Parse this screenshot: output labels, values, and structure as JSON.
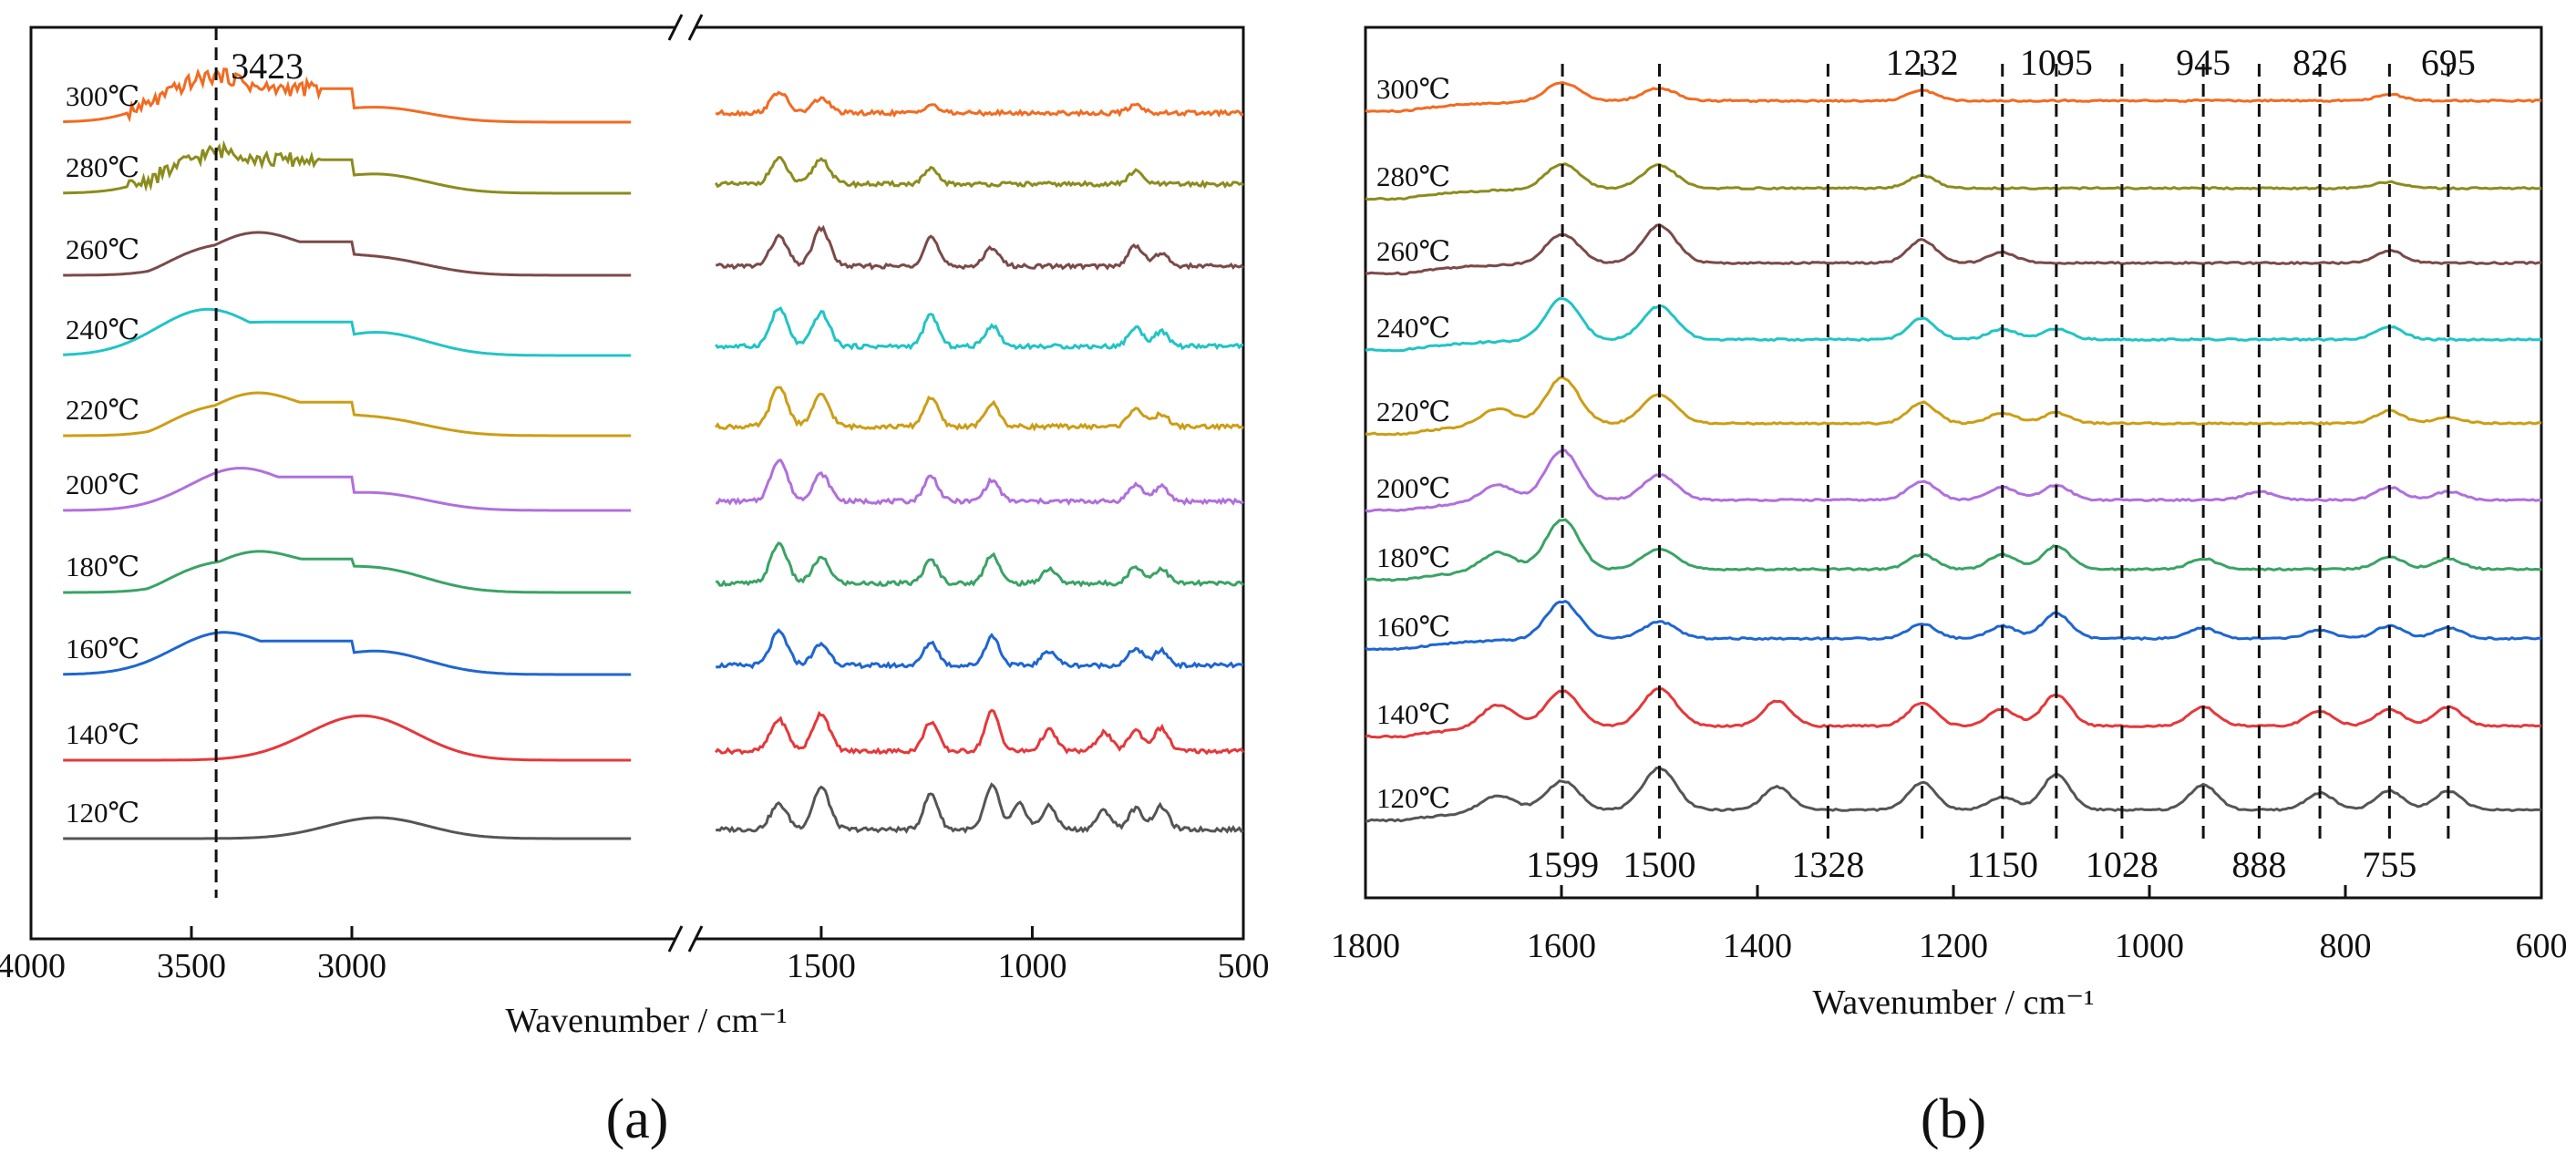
{
  "figure": {
    "panel_labels": [
      "(a)",
      "(b)"
    ]
  },
  "chart_data": [
    {
      "id": "a",
      "type": "line",
      "title": "",
      "xlabel": "Wavenumber / cm⁻¹",
      "ylabel": "",
      "x_reversed": true,
      "xlim_left_segment": [
        4000,
        2000
      ],
      "xlim_right_segment": [
        1800,
        500
      ],
      "axis_break": "//",
      "xticks": [
        4000,
        3500,
        3000,
        1500,
        1000,
        500
      ],
      "xtick_labels": [
        "4000",
        "3500",
        "3000",
        "1500",
        "1000",
        "500"
      ],
      "grid": false,
      "legend": "inline labels on left",
      "marker_lines": [
        {
          "x": 3423,
          "label": "3423"
        }
      ],
      "series": [
        {
          "name": "120℃",
          "color": "#555555",
          "peaks": [
            [
              2920,
              0.5
            ],
            [
              1600,
              0.6
            ],
            [
              1500,
              1.0
            ],
            [
              1240,
              0.85
            ],
            [
              1095,
              1.05
            ],
            [
              1030,
              0.6
            ],
            [
              960,
              0.55
            ],
            [
              830,
              0.45
            ],
            [
              755,
              0.5
            ],
            [
              695,
              0.55
            ]
          ]
        },
        {
          "name": "140℃",
          "color": "#e5383b",
          "peaks": [
            [
              3050,
              0.45
            ],
            [
              2920,
              0.7
            ],
            [
              1600,
              0.75
            ],
            [
              1500,
              0.9
            ],
            [
              1240,
              0.7
            ],
            [
              1095,
              0.95
            ],
            [
              960,
              0.5
            ],
            [
              830,
              0.45
            ],
            [
              755,
              0.5
            ],
            [
              695,
              0.55
            ]
          ]
        },
        {
          "name": "160℃",
          "color": "#1f66d1",
          "peaks": [
            [
              3400,
              1.0
            ],
            [
              2920,
              0.55
            ],
            [
              1600,
              0.8
            ],
            [
              1500,
              0.5
            ],
            [
              1240,
              0.55
            ],
            [
              1095,
              0.7
            ],
            [
              960,
              0.35
            ],
            [
              755,
              0.4
            ],
            [
              695,
              0.35
            ]
          ]
        },
        {
          "name": "180℃",
          "color": "#3aa365",
          "peaks": [
            [
              3300,
              0.95
            ],
            [
              2920,
              0.55
            ],
            [
              1600,
              0.95
            ],
            [
              1500,
              0.6
            ],
            [
              1240,
              0.55
            ],
            [
              1095,
              0.7
            ],
            [
              960,
              0.35
            ],
            [
              755,
              0.4
            ],
            [
              695,
              0.35
            ]
          ]
        },
        {
          "name": "200℃",
          "color": "#b070dc",
          "peaks": [
            [
              3350,
              1.0
            ],
            [
              2920,
              0.4
            ],
            [
              1600,
              1.0
            ],
            [
              1500,
              0.65
            ],
            [
              1240,
              0.6
            ],
            [
              1095,
              0.5
            ],
            [
              755,
              0.4
            ],
            [
              695,
              0.35
            ]
          ]
        },
        {
          "name": "220℃",
          "color": "#cc9e16",
          "peaks": [
            [
              3300,
              1.0
            ],
            [
              2920,
              0.4
            ],
            [
              1600,
              0.95
            ],
            [
              1500,
              0.75
            ],
            [
              1240,
              0.7
            ],
            [
              1095,
              0.55
            ],
            [
              755,
              0.45
            ],
            [
              695,
              0.3
            ]
          ]
        },
        {
          "name": "240℃",
          "color": "#22c4c4",
          "peaks": [
            [
              3450,
              1.1
            ],
            [
              2920,
              0.55
            ],
            [
              1600,
              0.9
            ],
            [
              1500,
              0.8
            ],
            [
              1240,
              0.75
            ],
            [
              1095,
              0.5
            ],
            [
              755,
              0.45
            ],
            [
              695,
              0.35
            ]
          ]
        },
        {
          "name": "260℃",
          "color": "#7b4a4a",
          "peaks": [
            [
              3300,
              1.0
            ],
            [
              2920,
              0.4
            ],
            [
              1600,
              0.7
            ],
            [
              1500,
              0.9
            ],
            [
              1240,
              0.7
            ],
            [
              1095,
              0.45
            ],
            [
              755,
              0.5
            ],
            [
              695,
              0.3
            ]
          ]
        },
        {
          "name": "280℃",
          "color": "#8c8c1e",
          "peaks": [
            [
              3400,
              1.0
            ],
            [
              2920,
              0.45
            ],
            [
              1600,
              0.6
            ],
            [
              1500,
              0.6
            ],
            [
              1240,
              0.35
            ],
            [
              755,
              0.3
            ]
          ]
        },
        {
          "name": "300℃",
          "color": "#f26b21",
          "peaks": [
            [
              3420,
              1.1
            ],
            [
              2920,
              0.35
            ],
            [
              1600,
              0.5
            ],
            [
              1500,
              0.35
            ],
            [
              1240,
              0.2
            ],
            [
              755,
              0.2
            ]
          ]
        }
      ]
    },
    {
      "id": "b",
      "type": "line",
      "title": "",
      "xlabel": "Wavenumber / cm⁻¹",
      "ylabel": "",
      "x_reversed": true,
      "xlim": [
        1800,
        600
      ],
      "xticks": [
        1800,
        1600,
        1400,
        1200,
        1000,
        800,
        600
      ],
      "xtick_labels": [
        "1800",
        "1600",
        "1400",
        "1200",
        "1000",
        "800",
        "600"
      ],
      "grid": false,
      "legend": "inline labels on left",
      "marker_lines": [
        {
          "x": 1599,
          "label": "1599",
          "label_position": "bottom"
        },
        {
          "x": 1500,
          "label": "1500",
          "label_position": "bottom"
        },
        {
          "x": 1328,
          "label": "1328",
          "label_position": "bottom"
        },
        {
          "x": 1232,
          "label": "1232",
          "label_position": "top"
        },
        {
          "x": 1150,
          "label": "1150",
          "label_position": "bottom"
        },
        {
          "x": 1095,
          "label": "1095",
          "label_position": "top"
        },
        {
          "x": 1028,
          "label": "1028",
          "label_position": "bottom"
        },
        {
          "x": 945,
          "label": "945",
          "label_position": "top"
        },
        {
          "x": 888,
          "label": "888",
          "label_position": "bottom"
        },
        {
          "x": 826,
          "label": "826",
          "label_position": "top"
        },
        {
          "x": 755,
          "label": "755",
          "label_position": "bottom"
        },
        {
          "x": 695,
          "label": "695",
          "label_position": "top"
        }
      ],
      "series": [
        {
          "name": "120℃",
          "color": "#555555",
          "peaks": [
            [
              1665,
              0.4
            ],
            [
              1599,
              0.7
            ],
            [
              1500,
              1.0
            ],
            [
              1380,
              0.55
            ],
            [
              1232,
              0.65
            ],
            [
              1150,
              0.3
            ],
            [
              1095,
              0.85
            ],
            [
              945,
              0.6
            ],
            [
              826,
              0.4
            ],
            [
              755,
              0.45
            ],
            [
              695,
              0.45
            ]
          ]
        },
        {
          "name": "140℃",
          "color": "#e5383b",
          "peaks": [
            [
              1665,
              0.55
            ],
            [
              1599,
              0.85
            ],
            [
              1500,
              0.9
            ],
            [
              1380,
              0.6
            ],
            [
              1232,
              0.55
            ],
            [
              1150,
              0.4
            ],
            [
              1095,
              0.75
            ],
            [
              945,
              0.45
            ],
            [
              826,
              0.35
            ],
            [
              755,
              0.4
            ],
            [
              695,
              0.45
            ]
          ]
        },
        {
          "name": "160℃",
          "color": "#1f66d1",
          "peaks": [
            [
              1599,
              0.9
            ],
            [
              1500,
              0.4
            ],
            [
              1232,
              0.35
            ],
            [
              1150,
              0.3
            ],
            [
              1095,
              0.6
            ],
            [
              945,
              0.25
            ],
            [
              826,
              0.2
            ],
            [
              755,
              0.3
            ],
            [
              695,
              0.25
            ]
          ]
        },
        {
          "name": "180℃",
          "color": "#3aa365",
          "peaks": [
            [
              1665,
              0.45
            ],
            [
              1599,
              1.2
            ],
            [
              1500,
              0.5
            ],
            [
              1232,
              0.35
            ],
            [
              1150,
              0.35
            ],
            [
              1095,
              0.55
            ],
            [
              945,
              0.25
            ],
            [
              755,
              0.3
            ],
            [
              695,
              0.25
            ]
          ]
        },
        {
          "name": "200℃",
          "color": "#b070dc",
          "peaks": [
            [
              1665,
              0.4
            ],
            [
              1599,
              1.2
            ],
            [
              1500,
              0.6
            ],
            [
              1232,
              0.45
            ],
            [
              1150,
              0.3
            ],
            [
              1095,
              0.35
            ],
            [
              888,
              0.2
            ],
            [
              755,
              0.3
            ],
            [
              695,
              0.2
            ]
          ]
        },
        {
          "name": "220℃",
          "color": "#cc9e16",
          "peaks": [
            [
              1665,
              0.4
            ],
            [
              1599,
              1.1
            ],
            [
              1500,
              0.7
            ],
            [
              1232,
              0.5
            ],
            [
              1150,
              0.25
            ],
            [
              1095,
              0.25
            ],
            [
              755,
              0.3
            ],
            [
              695,
              0.15
            ]
          ]
        },
        {
          "name": "240℃",
          "color": "#22c4c4",
          "peaks": [
            [
              1599,
              1.0
            ],
            [
              1500,
              0.8
            ],
            [
              1232,
              0.5
            ],
            [
              1150,
              0.25
            ],
            [
              1095,
              0.25
            ],
            [
              755,
              0.3
            ]
          ]
        },
        {
          "name": "260℃",
          "color": "#7b4a4a",
          "peaks": [
            [
              1599,
              0.7
            ],
            [
              1500,
              0.9
            ],
            [
              1232,
              0.55
            ],
            [
              1150,
              0.25
            ],
            [
              755,
              0.3
            ]
          ]
        },
        {
          "name": "280℃",
          "color": "#8c8c1e",
          "peaks": [
            [
              1599,
              0.6
            ],
            [
              1500,
              0.55
            ],
            [
              1232,
              0.3
            ],
            [
              755,
              0.15
            ]
          ]
        },
        {
          "name": "300℃",
          "color": "#f26b21",
          "peaks": [
            [
              1599,
              0.45
            ],
            [
              1500,
              0.3
            ],
            [
              1232,
              0.25
            ],
            [
              755,
              0.15
            ]
          ]
        }
      ]
    }
  ]
}
